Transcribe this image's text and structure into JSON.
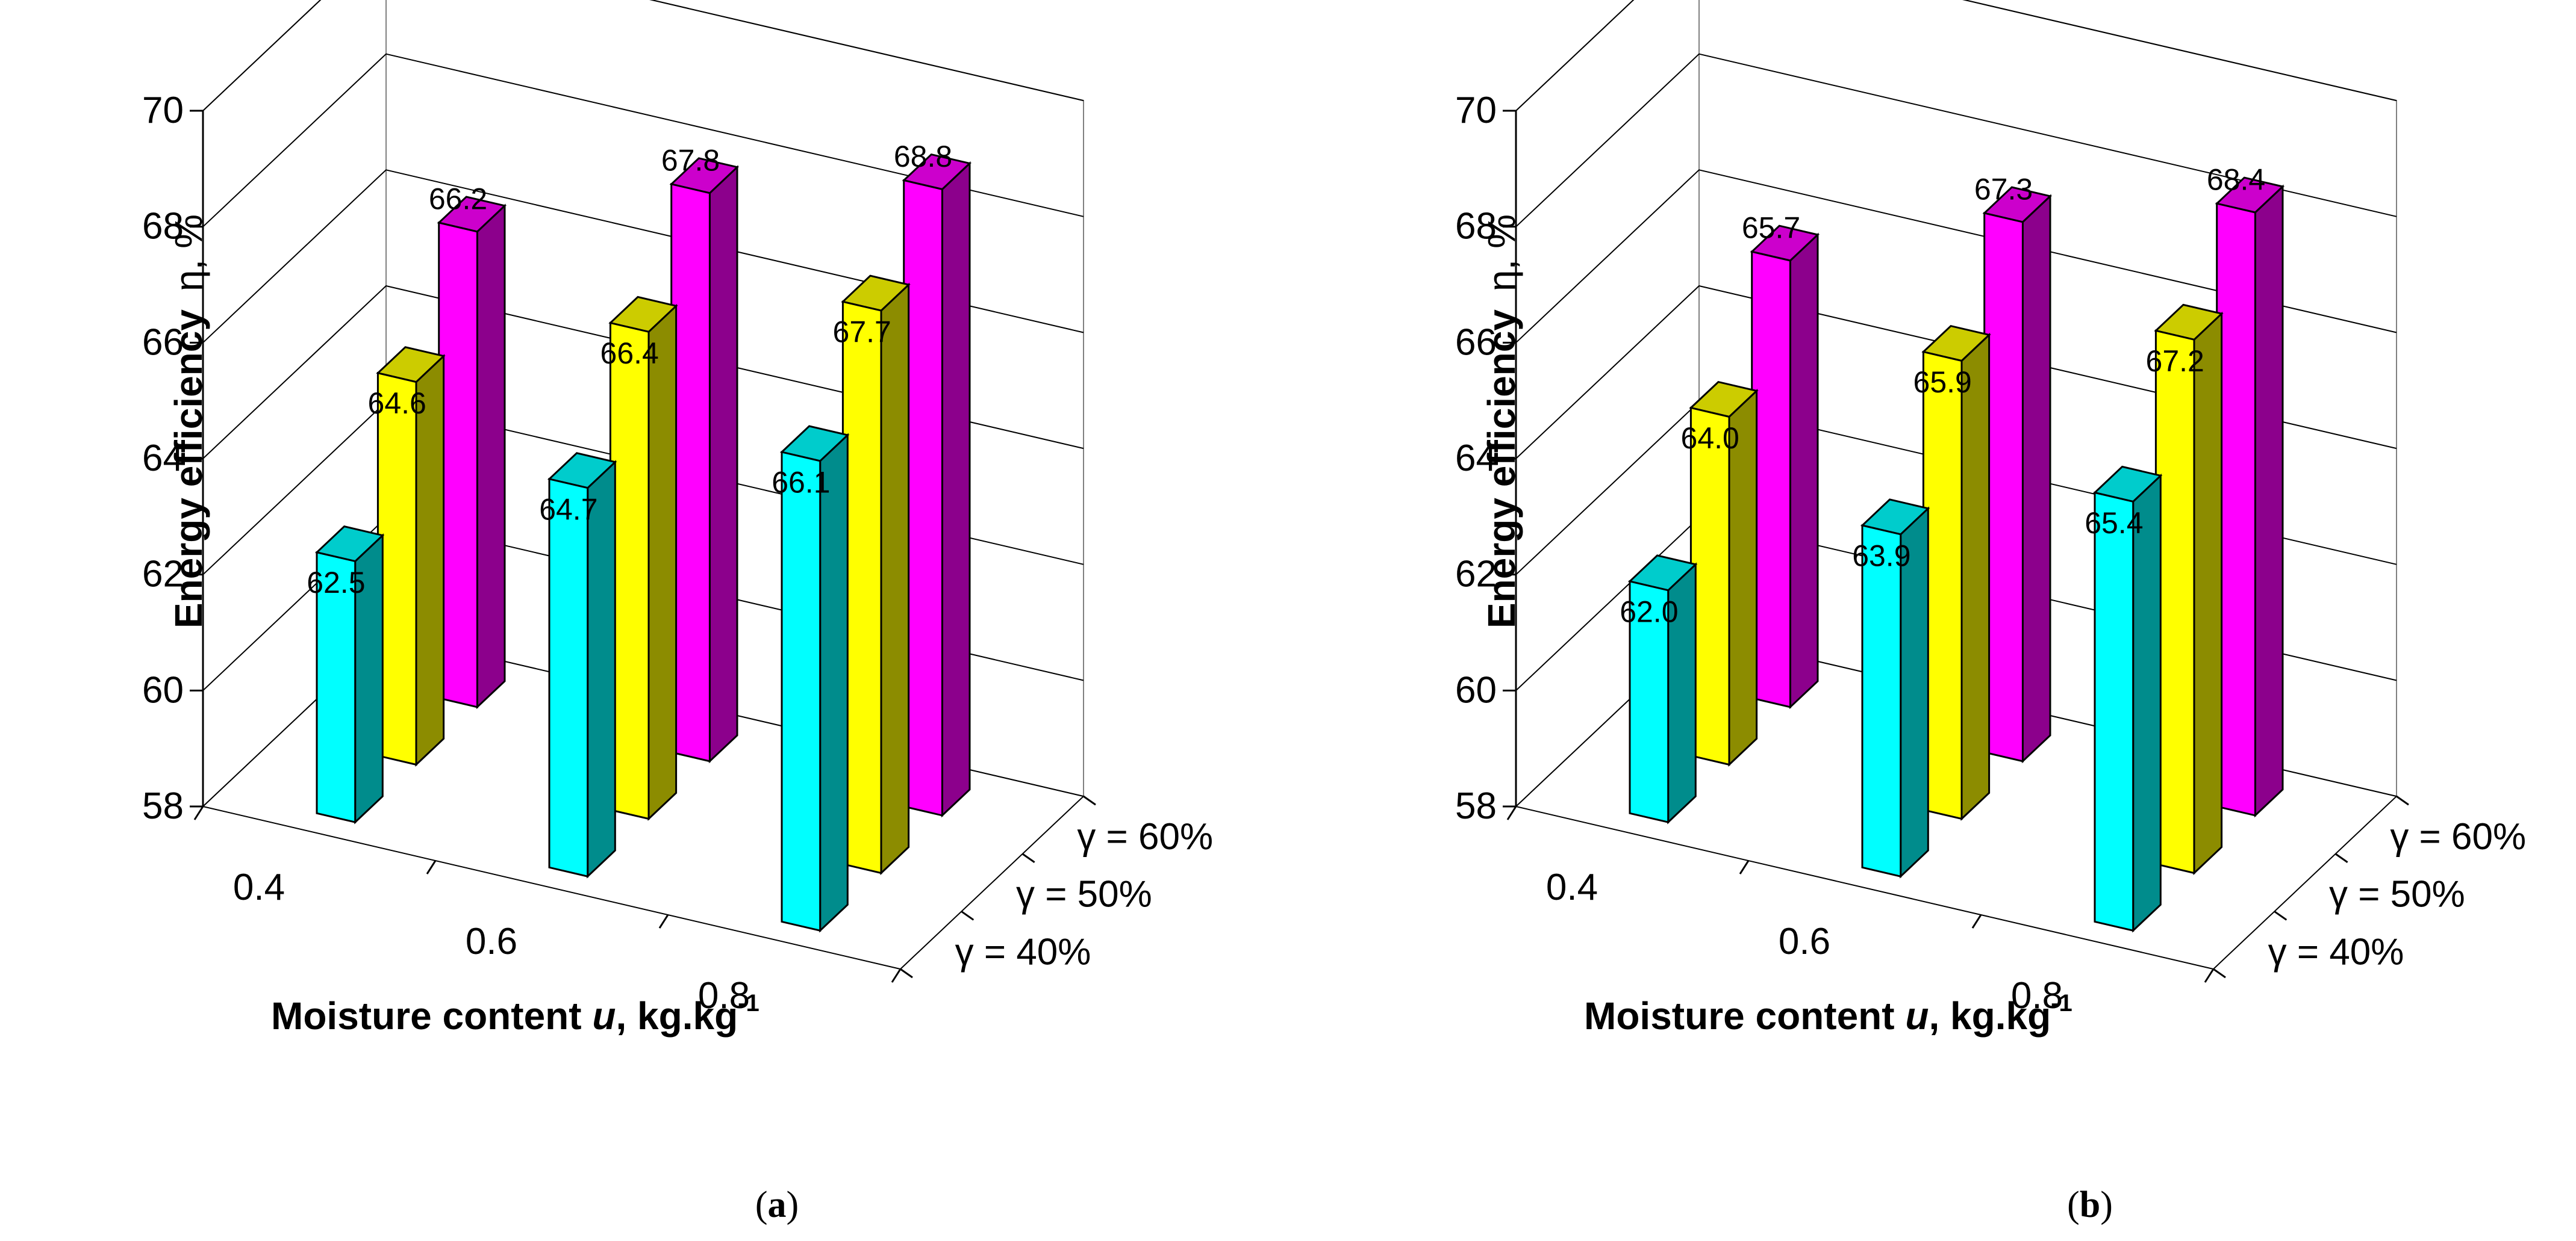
{
  "figure": {
    "charts": [
      {
        "caption_letter": "a",
        "y_ticks": [
          "58",
          "60",
          "62",
          "64",
          "66",
          "68",
          "70"
        ]
      },
      {
        "caption_letter": "b",
        "y_ticks": [
          "58",
          "60",
          "62",
          "64",
          "66",
          "68",
          "70"
        ]
      }
    ]
  },
  "chart_data": [
    {
      "type": "bar3d",
      "title": "",
      "caption": "(a)",
      "ylabel_main": "Energy efficiency",
      "ylabel_symbol": "η, %",
      "xlabel_prefix": "Moisture content ",
      "xlabel_var": "u",
      "xlabel_unit": ", kg.kg",
      "xlabel_sup": "-1",
      "categories": [
        "0.4",
        "0.6",
        "0.8"
      ],
      "series": [
        {
          "name": "γ = 40%",
          "color": "#00ffff",
          "values": [
            62.5,
            64.7,
            66.1
          ],
          "labels": [
            "62.5",
            "64.7",
            "66.1"
          ]
        },
        {
          "name": "γ = 50%",
          "color": "#ffff00",
          "values": [
            64.6,
            66.4,
            67.7
          ],
          "labels": [
            "64.6",
            "66.4",
            "67.7"
          ]
        },
        {
          "name": "γ = 60%",
          "color": "#ff00ff",
          "values": [
            66.2,
            67.8,
            68.8
          ],
          "labels": [
            "66.2",
            "67.8",
            "68.8"
          ]
        }
      ],
      "ylim": [
        58,
        70
      ],
      "grid": true
    },
    {
      "type": "bar3d",
      "title": "",
      "caption": "(b)",
      "ylabel_main": "Energy efficiency",
      "ylabel_symbol": "η, %",
      "xlabel_prefix": "Moisture content ",
      "xlabel_var": "u",
      "xlabel_unit": ", kg.kg",
      "xlabel_sup": "-1",
      "categories": [
        "0.4",
        "0.6",
        "0.8"
      ],
      "series": [
        {
          "name": "γ = 40%",
          "color": "#00ffff",
          "values": [
            62.0,
            63.9,
            65.4
          ],
          "labels": [
            "62.0",
            "63.9",
            "65.4"
          ]
        },
        {
          "name": "γ = 50%",
          "color": "#ffff00",
          "values": [
            64.0,
            65.9,
            67.2
          ],
          "labels": [
            "64.0",
            "65.9",
            "67.2"
          ]
        },
        {
          "name": "γ = 60%",
          "color": "#ff00ff",
          "values": [
            65.7,
            67.3,
            68.4
          ],
          "labels": [
            "65.7",
            "67.3",
            "68.4"
          ]
        }
      ],
      "ylim": [
        58,
        70
      ],
      "grid": true
    }
  ]
}
